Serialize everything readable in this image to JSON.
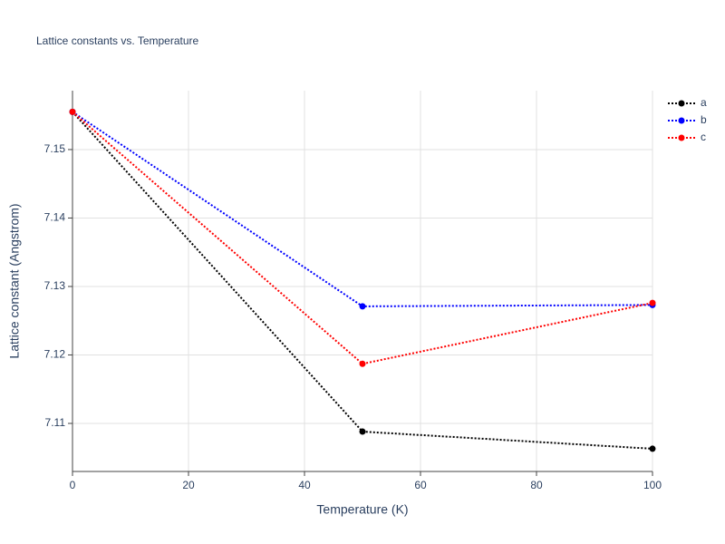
{
  "chart_data": {
    "type": "line",
    "title": "Lattice constants vs. Temperature",
    "x_label": "Temperature (K)",
    "y_label": "Lattice constant (Angstrom)",
    "x": [
      0,
      50,
      100
    ],
    "series": [
      {
        "name": "a",
        "color": "#000000",
        "values": [
          7.1555,
          7.1088,
          7.1063
        ]
      },
      {
        "name": "b",
        "color": "#0000ff",
        "values": [
          7.1555,
          7.1271,
          7.1273
        ]
      },
      {
        "name": "c",
        "color": "#ff0000",
        "values": [
          7.1555,
          7.1187,
          7.1276
        ]
      }
    ],
    "xlim": [
      0,
      100
    ],
    "xticks": [
      0,
      20,
      40,
      60,
      80,
      100
    ],
    "ylim": [
      7.10298,
      7.1586
    ],
    "yticks": [
      {
        "value": 7.11,
        "label": "7.11"
      },
      {
        "value": 7.12,
        "label": "7.12"
      },
      {
        "value": 7.13,
        "label": "7.13"
      },
      {
        "value": 7.14,
        "label": "7.14"
      },
      {
        "value": 7.15,
        "label": "7.15"
      }
    ],
    "grid": true,
    "legend": "right"
  }
}
